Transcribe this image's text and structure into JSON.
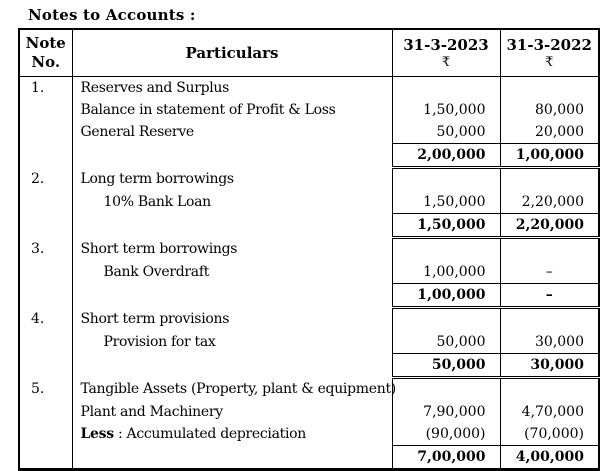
{
  "page": {
    "title": "Notes to Accounts :"
  },
  "table": {
    "header": {
      "note_line1": "Note",
      "note_line2": "No.",
      "particulars": "Particulars",
      "col_2023": "31-3-2023",
      "col_2022": "31-3-2022",
      "currency_symbol": "₹"
    },
    "rows": [
      {
        "note": "1.",
        "particulars": "Reserves and Surplus",
        "amt_2023": "",
        "amt_2022": ""
      },
      {
        "note": "",
        "particulars": "Balance in statement of Profit & Loss",
        "amt_2023": "1,50,000",
        "amt_2022": "80,000"
      },
      {
        "note": "",
        "particulars": "General Reserve",
        "amt_2023": "50,000",
        "amt_2022": "20,000"
      },
      {
        "note": "",
        "particulars": "",
        "total": true,
        "amt_2023": "2,00,000",
        "amt_2022": "1,00,000"
      },
      {
        "note": "2.",
        "particulars": "Long term borrowings",
        "amt_2023": "",
        "amt_2022": ""
      },
      {
        "note": "",
        "particulars": "10% Bank Loan",
        "indent": true,
        "amt_2023": "1,50,000",
        "amt_2022": "2,20,000"
      },
      {
        "note": "",
        "particulars": "",
        "total": true,
        "amt_2023": "1,50,000",
        "amt_2022": "2,20,000"
      },
      {
        "note": "3.",
        "particulars": "Short term borrowings",
        "amt_2023": "",
        "amt_2022": ""
      },
      {
        "note": "",
        "particulars": "Bank Overdraft",
        "indent": true,
        "amt_2023": "1,00,000",
        "amt_2022": "–"
      },
      {
        "note": "",
        "particulars": "",
        "total": true,
        "amt_2023": "1,00,000",
        "amt_2022": "–"
      },
      {
        "note": "4.",
        "particulars": "Short term provisions",
        "amt_2023": "",
        "amt_2022": ""
      },
      {
        "note": "",
        "particulars": "Provision for tax",
        "indent": true,
        "amt_2023": "50,000",
        "amt_2022": "30,000"
      },
      {
        "note": "",
        "particulars": "",
        "total": true,
        "amt_2023": "50,000",
        "amt_2022": "30,000"
      },
      {
        "note": "5.",
        "particulars": "Tangible Assets (Property, plant & equipment)",
        "amt_2023": "",
        "amt_2022": ""
      },
      {
        "note": "",
        "particulars": "Plant and Machinery",
        "amt_2023": "7,90,000",
        "amt_2022": "4,70,000"
      },
      {
        "note": "",
        "particulars_bold_prefix": "Less",
        "particulars_rest": " : Accumulated depreciation",
        "amt_2023": "(90,000)",
        "amt_2022": "(70,000)"
      },
      {
        "note": "",
        "particulars": "",
        "total": true,
        "last": true,
        "amt_2023": "7,00,000",
        "amt_2022": "4,00,000"
      }
    ]
  }
}
